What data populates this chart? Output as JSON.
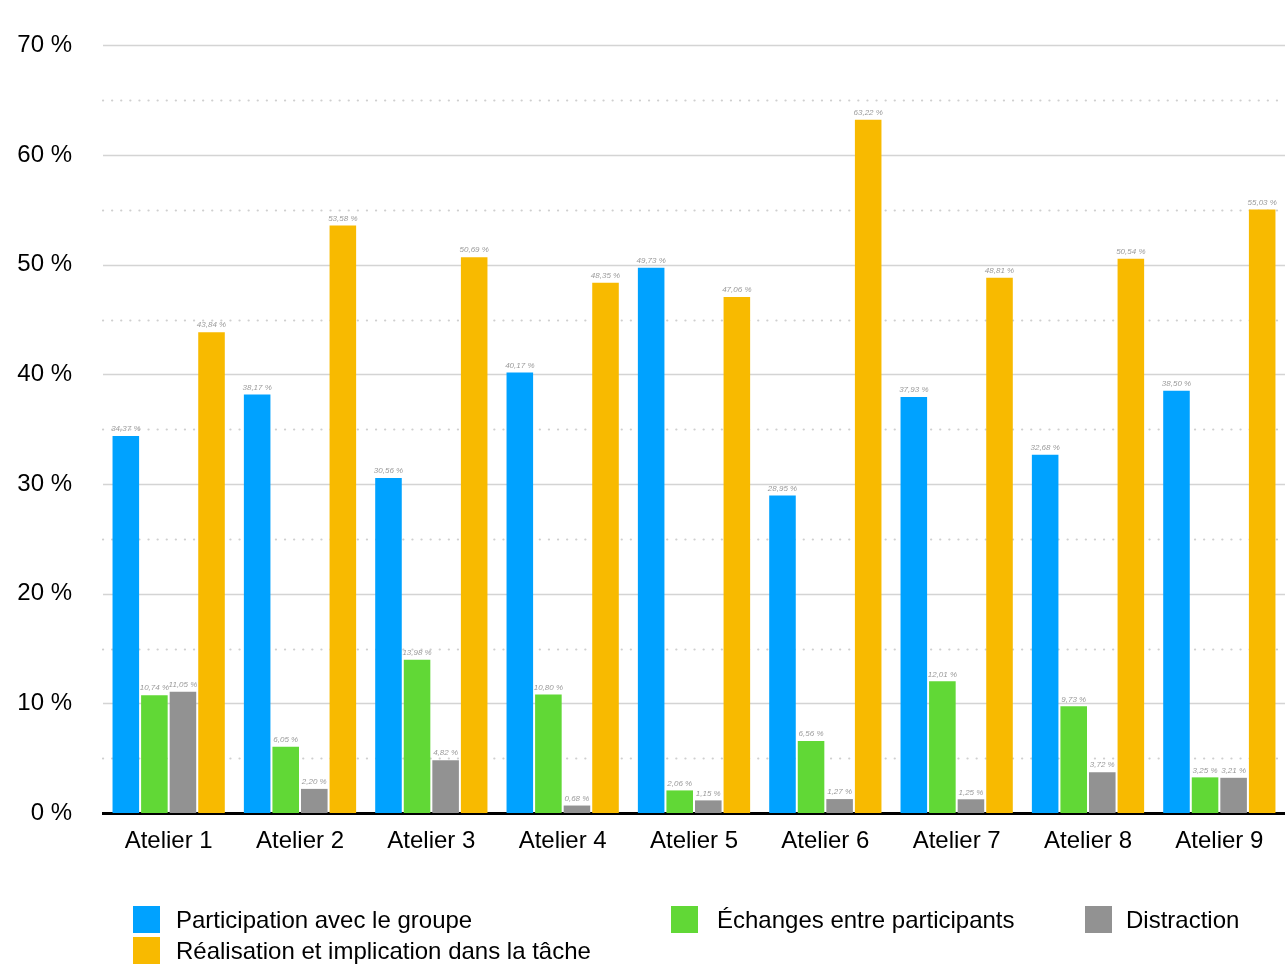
{
  "chart_data": {
    "type": "bar",
    "categories": [
      "Atelier 1",
      "Atelier 2",
      "Atelier 3",
      "Atelier 4",
      "Atelier 5",
      "Atelier 6",
      "Atelier 7",
      "Atelier 8",
      "Atelier 9"
    ],
    "series": [
      {
        "name": "Participation avec le groupe",
        "color": "#00a2ff",
        "values": [
          34.37,
          38.17,
          30.56,
          40.17,
          49.73,
          28.95,
          37.93,
          32.68,
          38.5
        ],
        "value_labels": [
          "34,37 %",
          "38,17 %",
          "30,56 %",
          "40,17 %",
          "49,73 %",
          "28,95 %",
          "37,93 %",
          "32,68 %",
          "38,50 %"
        ]
      },
      {
        "name": "Échanges entre participants",
        "color": "#61d836",
        "values": [
          10.74,
          6.05,
          13.98,
          10.8,
          2.06,
          6.56,
          12.01,
          9.73,
          3.25
        ],
        "value_labels": [
          "10,74 %",
          "6,05 %",
          "13,98 %",
          "10,80 %",
          "2,06 %",
          "6,56 %",
          "12,01 %",
          "9,73 %",
          "3,25 %"
        ]
      },
      {
        "name": "Distraction",
        "color": "#929292",
        "values": [
          11.05,
          2.2,
          4.82,
          0.68,
          1.15,
          1.27,
          1.25,
          3.72,
          3.21
        ],
        "value_labels": [
          "11,05 %",
          "2,20 %",
          "4,82 %",
          "0,68 %",
          "1,15 %",
          "1,27 %",
          "1,25 %",
          "3,72 %",
          "3,21 %"
        ]
      },
      {
        "name": "Réalisation et implication dans la tâche",
        "color": "#f8ba00",
        "values": [
          43.84,
          53.58,
          50.69,
          48.35,
          47.06,
          63.22,
          48.81,
          50.54,
          55.03
        ],
        "value_labels": [
          "43,84 %",
          "53,58 %",
          "50,69 %",
          "48,35 %",
          "47,06 %",
          "63,22 %",
          "48,81 %",
          "50,54 %",
          "55,03 %"
        ]
      }
    ],
    "ylim": [
      0,
      70
    ],
    "yticks": [
      {
        "value": 0,
        "label": "0 %"
      },
      {
        "value": 5,
        "label": null
      },
      {
        "value": 10,
        "label": "10 %"
      },
      {
        "value": 15,
        "label": null
      },
      {
        "value": 20,
        "label": "20 %"
      },
      {
        "value": 25,
        "label": null
      },
      {
        "value": 30,
        "label": "30 %"
      },
      {
        "value": 35,
        "label": null
      },
      {
        "value": 40,
        "label": "40 %"
      },
      {
        "value": 45,
        "label": null
      },
      {
        "value": 50,
        "label": "50 %"
      },
      {
        "value": 55,
        "label": null
      },
      {
        "value": 60,
        "label": "60 %"
      },
      {
        "value": 65,
        "label": null
      },
      {
        "value": 70,
        "label": "70 %"
      }
    ],
    "grid": "y",
    "legend": "bottom"
  }
}
